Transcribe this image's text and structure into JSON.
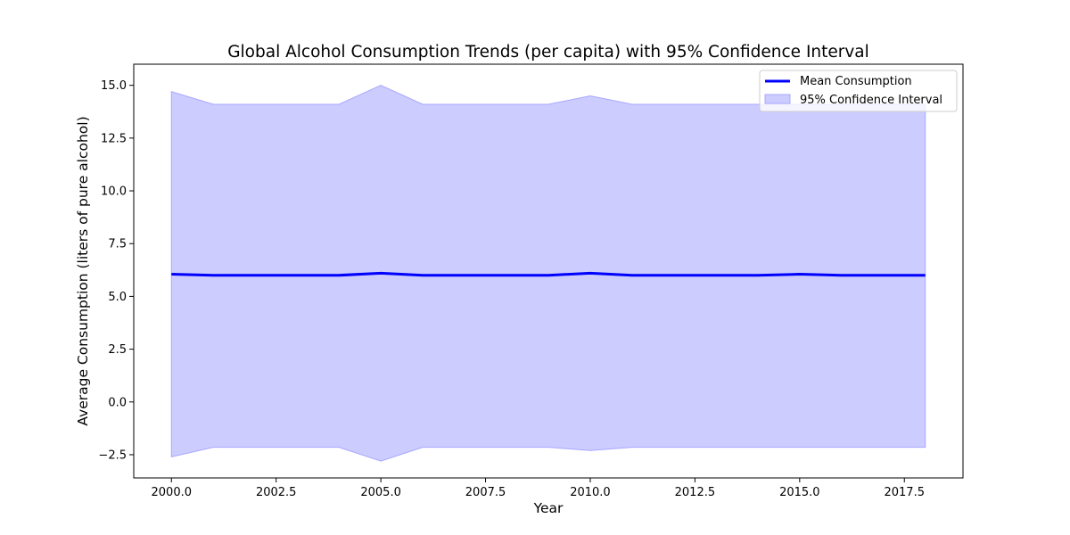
{
  "chart_data": {
    "type": "line",
    "title": "Global Alcohol Consumption Trends (per capita) with 95% Confidence Interval",
    "xlabel": "Year",
    "ylabel": "Average Consumption (liters of pure alcohol)",
    "xlim": [
      1999.1,
      2018.9
    ],
    "ylim": [
      -3.6,
      16.0
    ],
    "xticks": [
      2000.0,
      2002.5,
      2005.0,
      2007.5,
      2010.0,
      2012.5,
      2015.0,
      2017.5
    ],
    "xtick_labels": [
      "2000.0",
      "2002.5",
      "2005.0",
      "2007.5",
      "2010.0",
      "2012.5",
      "2015.0",
      "2017.5"
    ],
    "yticks": [
      -2.5,
      0.0,
      2.5,
      5.0,
      7.5,
      10.0,
      12.5,
      15.0
    ],
    "ytick_labels": [
      "−2.5",
      "0.0",
      "2.5",
      "5.0",
      "7.5",
      "10.0",
      "12.5",
      "15.0"
    ],
    "grid": false,
    "legend_position": "top-right",
    "x": [
      2000,
      2001,
      2002,
      2003,
      2004,
      2005,
      2006,
      2007,
      2008,
      2009,
      2010,
      2011,
      2012,
      2013,
      2014,
      2015,
      2016,
      2017,
      2018
    ],
    "series": [
      {
        "name": "Mean Consumption",
        "kind": "line",
        "color": "#0000ff",
        "values": [
          6.05,
          6.0,
          6.0,
          6.0,
          6.0,
          6.1,
          6.0,
          6.0,
          6.0,
          6.0,
          6.1,
          6.0,
          6.0,
          6.0,
          6.0,
          6.05,
          6.0,
          6.0,
          6.0
        ]
      },
      {
        "name": "95% Confidence Interval",
        "kind": "band",
        "color": "#ccccff",
        "edge_color": "#a8a8ff",
        "lower": [
          -2.6,
          -2.15,
          -2.15,
          -2.15,
          -2.15,
          -2.8,
          -2.15,
          -2.15,
          -2.15,
          -2.15,
          -2.3,
          -2.15,
          -2.15,
          -2.15,
          -2.15,
          -2.15,
          -2.15,
          -2.15,
          -2.15
        ],
        "upper": [
          14.7,
          14.1,
          14.1,
          14.1,
          14.1,
          15.0,
          14.1,
          14.1,
          14.1,
          14.1,
          14.5,
          14.1,
          14.1,
          14.1,
          14.1,
          14.1,
          14.1,
          14.1,
          14.1
        ]
      }
    ]
  }
}
